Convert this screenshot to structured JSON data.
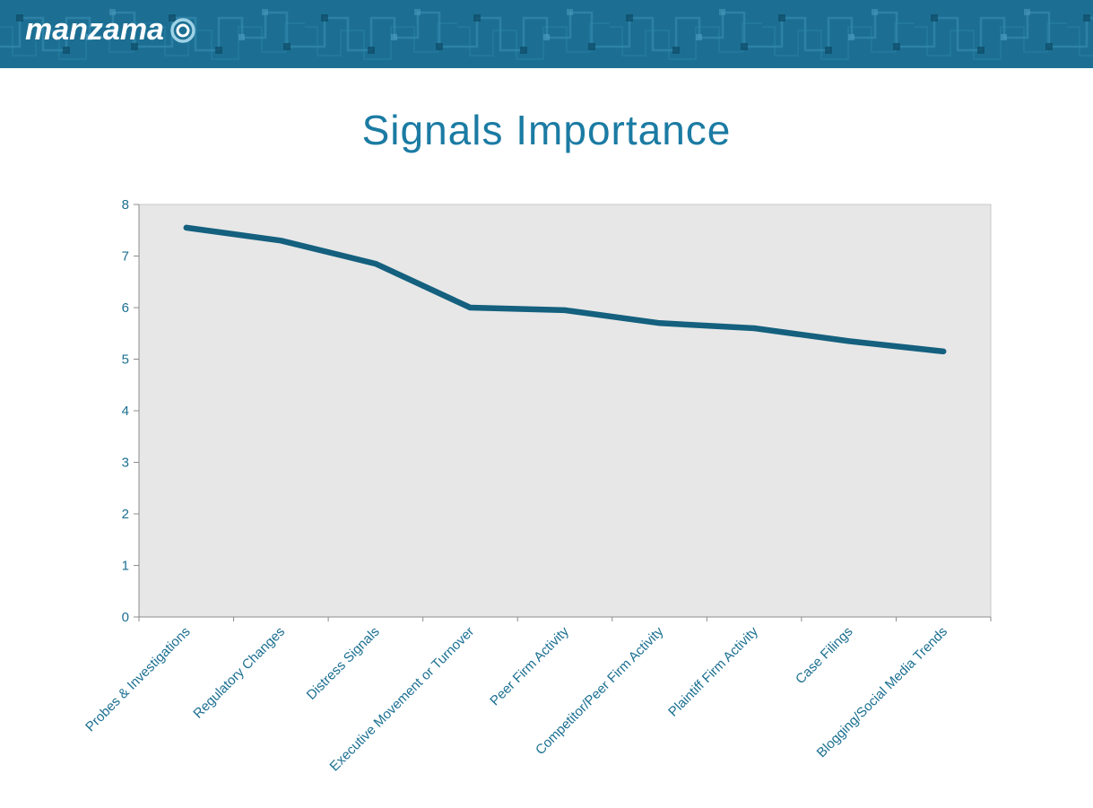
{
  "theme": {
    "header-bg": "#1c6f93",
    "accent": "#1b7ba3",
    "label": "#1b6f91"
  },
  "header": {
    "logo_text": "manzama"
  },
  "title": "Signals Importance",
  "chart_data": {
    "type": "line",
    "title": "Signals Importance",
    "categories": [
      "Probes & Investigations",
      "Regulatory Changes",
      "Distress Signals",
      "Executive Movement or Turnover",
      "Peer Firm Activity",
      "Competitor/Peer Firm Activity",
      "Plaintiff Firm Activity",
      "Case Filings",
      "Blogging/Social Media Trends"
    ],
    "values": [
      7.55,
      7.3,
      6.85,
      6.0,
      5.95,
      5.7,
      5.6,
      5.35,
      5.15
    ],
    "xlabel": "",
    "ylabel": "",
    "ylim": [
      0,
      8
    ],
    "ytick_step": 1,
    "grid": false,
    "legend": "none",
    "line_color": "#14607e",
    "label_color": "#1b6f91",
    "plot_bg": "#e7e7e7",
    "axis_color": "#8c8c8c"
  }
}
